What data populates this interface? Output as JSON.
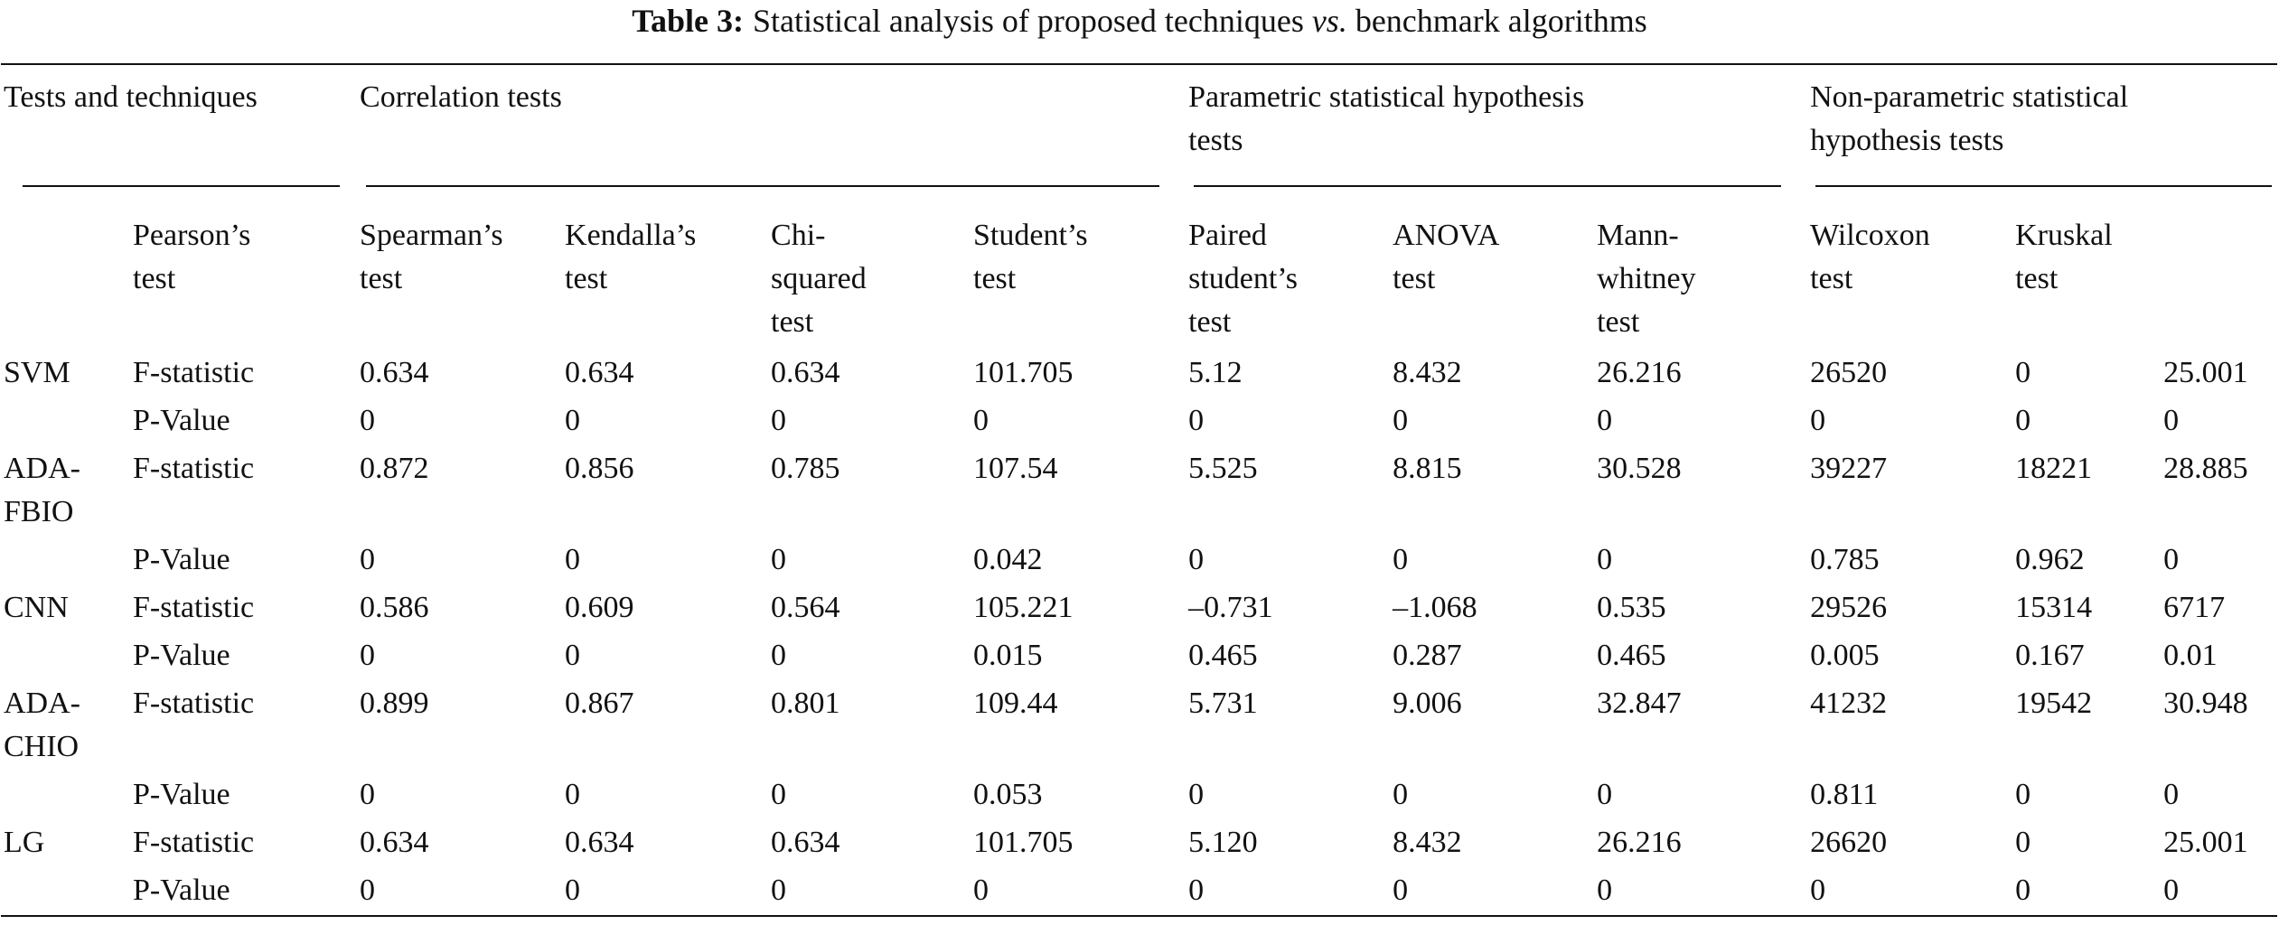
{
  "title": {
    "number": "Table 3:",
    "parts": [
      "Statistical analysis of proposed techniques",
      "vs.",
      "benchmark algorithms"
    ]
  },
  "table": {
    "group_headers": [
      "Tests and techniques",
      "Correlation tests",
      "Parametric statistical hypothesis tests",
      "Non-parametric statistical hypothesis tests"
    ],
    "column_headers": [
      "Pearson’s test",
      "Spearman’s test",
      "Kendalla’s test",
      "Chi-squared test",
      "Student’s test",
      "Paired student’s test",
      "ANOVA test",
      "Mann-whitney test",
      "Wilcoxon test",
      "Kruskal test"
    ],
    "groups": [
      {
        "technique": "SVM",
        "rows": [
          {
            "measure": "F-statistic",
            "values": [
              "0.634",
              "0.634",
              "0.634",
              "101.705",
              "5.12",
              "8.432",
              "26.216",
              "26520",
              "0",
              "25.001"
            ]
          },
          {
            "measure": "P-Value",
            "values": [
              "0",
              "0",
              "0",
              "0",
              "0",
              "0",
              "0",
              "0",
              "0",
              "0"
            ]
          }
        ]
      },
      {
        "technique": "ADA-FBIO",
        "rows": [
          {
            "measure": "F-statistic",
            "values": [
              "0.872",
              "0.856",
              "0.785",
              "107.54",
              "5.525",
              "8.815",
              "30.528",
              "39227",
              "18221",
              "28.885"
            ]
          },
          {
            "measure": "P-Value",
            "values": [
              "0",
              "0",
              "0",
              "0.042",
              "0",
              "0",
              "0",
              "0.785",
              "0.962",
              "0"
            ]
          }
        ]
      },
      {
        "technique": "CNN",
        "rows": [
          {
            "measure": "F-statistic",
            "values": [
              "0.586",
              "0.609",
              "0.564",
              "105.221",
              "–0.731",
              "–1.068",
              "0.535",
              "29526",
              "15314",
              "6717"
            ]
          },
          {
            "measure": "P-Value",
            "values": [
              "0",
              "0",
              "0",
              "0.015",
              "0.465",
              "0.287",
              "0.465",
              "0.005",
              "0.167",
              "0.01"
            ]
          }
        ]
      },
      {
        "technique": "ADA-CHIO",
        "rows": [
          {
            "measure": "F-statistic",
            "values": [
              "0.899",
              "0.867",
              "0.801",
              "109.44",
              "5.731",
              "9.006",
              "32.847",
              "41232",
              "19542",
              "30.948"
            ]
          },
          {
            "measure": "P-Value",
            "values": [
              "0",
              "0",
              "0",
              "0.053",
              "0",
              "0",
              "0",
              "0.811",
              "0",
              "0"
            ]
          }
        ]
      },
      {
        "technique": "LG",
        "rows": [
          {
            "measure": "F-statistic",
            "values": [
              "0.634",
              "0.634",
              "0.634",
              "101.705",
              "5.120",
              "8.432",
              "26.216",
              "26620",
              "0",
              "25.001"
            ]
          },
          {
            "measure": "P-Value",
            "values": [
              "0",
              "0",
              "0",
              "0",
              "0",
              "0",
              "0",
              "0",
              "0",
              "0"
            ]
          }
        ]
      }
    ]
  }
}
